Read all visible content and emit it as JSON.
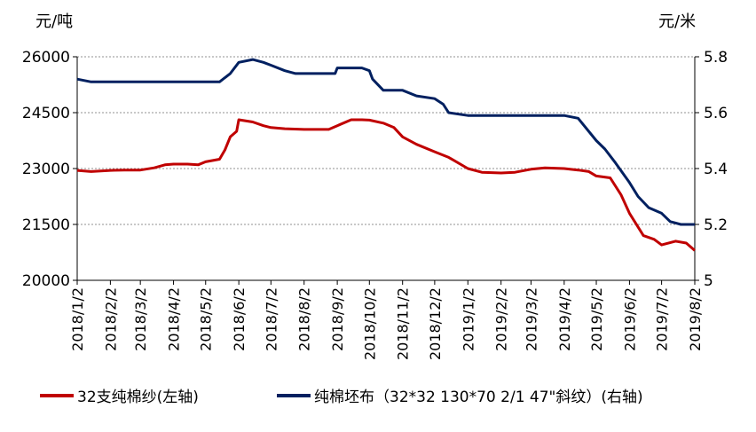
{
  "chart_data": {
    "type": "line",
    "units": {
      "left": "元/吨",
      "right": "元/米"
    },
    "left_axis": {
      "min": 20000,
      "max": 26000,
      "ticks": [
        "26000",
        "24500",
        "23000",
        "21500",
        "20000"
      ]
    },
    "right_axis": {
      "min": 5,
      "max": 5.8,
      "ticks": [
        "5.8",
        "5.6",
        "5.4",
        "5.2",
        "5"
      ]
    },
    "grid": true,
    "legend_position": "bottom",
    "x_labels": [
      "2018/1/2",
      "2018/2/2",
      "2018/3/2",
      "2018/4/2",
      "2018/5/2",
      "2018/6/2",
      "2018/7/2",
      "2018/8/2",
      "2018/9/2",
      "2018/10/2",
      "2018/11/2",
      "2018/12/2",
      "2019/1/2",
      "2019/2/2",
      "2019/3/2",
      "2019/4/2",
      "2019/5/2",
      "2019/6/2",
      "2019/7/2",
      "2019/8/2"
    ],
    "series": [
      {
        "name": "32支纯棉纱(左轴)",
        "axis": "left",
        "color": "#c00000",
        "x": [
          "2018/1/2",
          "2018/1/15",
          "2018/2/2",
          "2018/2/15",
          "2018/3/2",
          "2018/3/15",
          "2018/3/25",
          "2018/4/2",
          "2018/4/15",
          "2018/4/25",
          "2018/5/2",
          "2018/5/15",
          "2018/5/20",
          "2018/5/25",
          "2018/5/31",
          "2018/6/2",
          "2018/6/15",
          "2018/6/25",
          "2018/7/2",
          "2018/7/15",
          "2018/8/2",
          "2018/8/25",
          "2018/9/2",
          "2018/9/15",
          "2018/9/25",
          "2018/10/2",
          "2018/10/15",
          "2018/10/25",
          "2018/11/2",
          "2018/11/15",
          "2018/12/2",
          "2018/12/15",
          "2019/1/2",
          "2019/1/15",
          "2019/2/2",
          "2019/2/15",
          "2019/3/2",
          "2019/3/15",
          "2019/4/2",
          "2019/4/15",
          "2019/4/25",
          "2019/5/2",
          "2019/5/15",
          "2019/5/25",
          "2019/6/2",
          "2019/6/15",
          "2019/6/25",
          "2019/7/2",
          "2019/7/15",
          "2019/7/25",
          "2019/8/2"
        ],
        "values": [
          22950,
          22920,
          22950,
          22960,
          22960,
          23020,
          23100,
          23120,
          23120,
          23100,
          23180,
          23250,
          23500,
          23850,
          24000,
          24310,
          24250,
          24150,
          24100,
          24070,
          24050,
          24050,
          24150,
          24310,
          24310,
          24300,
          24220,
          24100,
          23850,
          23650,
          23450,
          23300,
          23000,
          22900,
          22880,
          22900,
          22980,
          23020,
          23000,
          22960,
          22920,
          22800,
          22750,
          22300,
          21800,
          21200,
          21100,
          20950,
          21050,
          21000,
          20800
        ]
      },
      {
        "name": "纯棉坯布（32*32 130*70 2/1 47\"斜纹）(右轴)",
        "axis": "right",
        "color": "#002060",
        "x": [
          "2018/1/2",
          "2018/1/15",
          "2018/2/2",
          "2018/3/2",
          "2018/4/2",
          "2018/5/2",
          "2018/5/15",
          "2018/5/25",
          "2018/6/2",
          "2018/6/15",
          "2018/6/25",
          "2018/7/2",
          "2018/7/15",
          "2018/7/25",
          "2018/8/2",
          "2018/8/15",
          "2018/8/31",
          "2018/9/2",
          "2018/9/25",
          "2018/10/2",
          "2018/10/5",
          "2018/10/15",
          "2018/11/2",
          "2018/11/15",
          "2018/12/2",
          "2018/12/10",
          "2018/12/15",
          "2019/1/2",
          "2019/2/2",
          "2019/3/2",
          "2019/4/2",
          "2019/4/15",
          "2019/5/2",
          "2019/5/10",
          "2019/5/20",
          "2019/6/2",
          "2019/6/10",
          "2019/6/20",
          "2019/7/2",
          "2019/7/10",
          "2019/7/20",
          "2019/8/2"
        ],
        "values": [
          5.72,
          5.71,
          5.71,
          5.71,
          5.71,
          5.71,
          5.71,
          5.74,
          5.78,
          5.79,
          5.78,
          5.77,
          5.75,
          5.74,
          5.74,
          5.74,
          5.74,
          5.76,
          5.76,
          5.75,
          5.72,
          5.68,
          5.68,
          5.66,
          5.65,
          5.63,
          5.6,
          5.59,
          5.59,
          5.59,
          5.59,
          5.58,
          5.5,
          5.47,
          5.42,
          5.35,
          5.3,
          5.26,
          5.24,
          5.21,
          5.2,
          5.2
        ]
      }
    ]
  }
}
